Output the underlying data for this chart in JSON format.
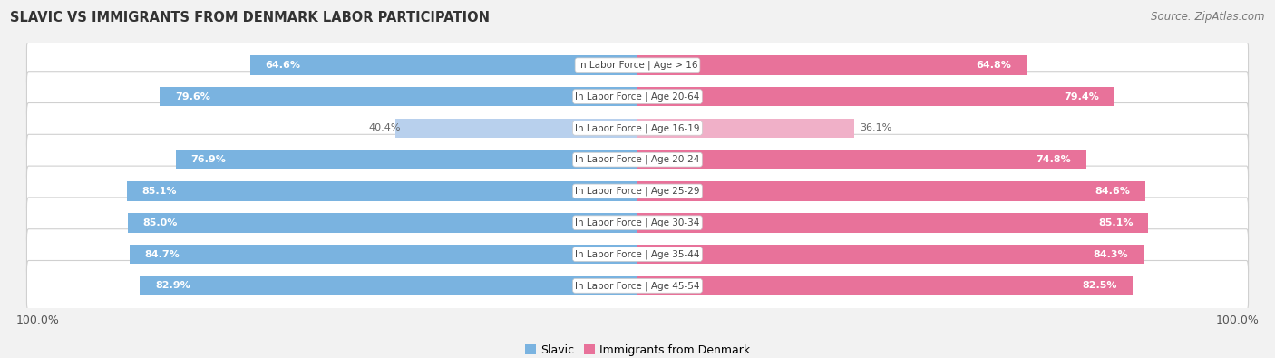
{
  "title": "Slavic vs Immigrants from Denmark Labor Participation",
  "source": "Source: ZipAtlas.com",
  "categories": [
    "In Labor Force | Age > 16",
    "In Labor Force | Age 20-64",
    "In Labor Force | Age 16-19",
    "In Labor Force | Age 20-24",
    "In Labor Force | Age 25-29",
    "In Labor Force | Age 30-34",
    "In Labor Force | Age 35-44",
    "In Labor Force | Age 45-54"
  ],
  "slavic_values": [
    64.6,
    79.6,
    40.4,
    76.9,
    85.1,
    85.0,
    84.7,
    82.9
  ],
  "denmark_values": [
    64.8,
    79.4,
    36.1,
    74.8,
    84.6,
    85.1,
    84.3,
    82.5
  ],
  "slavic_color": "#7ab3e0",
  "slavic_color_light": "#b8d0ed",
  "denmark_color": "#e8729a",
  "denmark_color_light": "#f0b0c8",
  "bar_height": 0.62,
  "background_color": "#f2f2f2",
  "max_value": 100.0,
  "legend_slavic": "Slavic",
  "legend_denmark": "Immigrants from Denmark"
}
